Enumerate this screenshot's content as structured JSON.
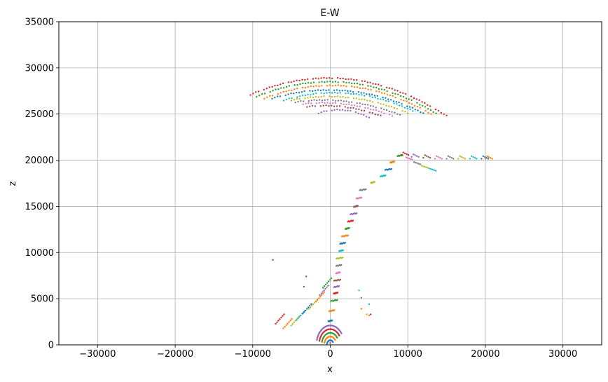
{
  "chart_data": {
    "type": "scatter",
    "title": "E-W",
    "xlabel": "x",
    "ylabel": "z",
    "xlim": [
      -35000,
      35000
    ],
    "ylim": [
      0,
      35000
    ],
    "grid": true,
    "xticks": [
      -30000,
      -20000,
      -10000,
      0,
      10000,
      20000,
      30000
    ],
    "yticks": [
      0,
      5000,
      10000,
      15000,
      20000,
      25000,
      30000,
      35000
    ],
    "xtick_labels": [
      "−30000",
      "−20000",
      "−10000",
      "0",
      "10000",
      "20000",
      "30000"
    ],
    "ytick_labels": [
      "0",
      "5000",
      "10000",
      "15000",
      "20000",
      "25000",
      "30000",
      "35000"
    ],
    "palette": [
      "#1f77b4",
      "#ff7f0e",
      "#2ca02c",
      "#d62728",
      "#9467bd",
      "#8c564b",
      "#e377c2",
      "#7f7f7f",
      "#bcbd22",
      "#17becf"
    ],
    "upper_arcs": [
      {
        "x": [
          -10300,
          0,
          15000
        ],
        "z": [
          27100,
          28900,
          24800
        ],
        "color": "#d62728"
      },
      {
        "x": [
          -9500,
          0,
          14000
        ],
        "z": [
          26900,
          28500,
          24900
        ],
        "color": "#2ca02c"
      },
      {
        "x": [
          -8500,
          0,
          13000
        ],
        "z": [
          26700,
          28100,
          25000
        ],
        "color": "#ff7f0e"
      },
      {
        "x": [
          -7500,
          0,
          12000
        ],
        "z": [
          26700,
          27600,
          25100
        ],
        "color": "#1f77b4"
      },
      {
        "x": [
          -6000,
          0,
          11000
        ],
        "z": [
          26500,
          27300,
          25200
        ],
        "color": "#17becf"
      },
      {
        "x": [
          -5000,
          0,
          10000
        ],
        "z": [
          26500,
          26900,
          25100
        ],
        "color": "#bcbd22"
      },
      {
        "x": [
          -4500,
          0,
          9000
        ],
        "z": [
          26300,
          26500,
          24900
        ],
        "color": "#7f7f7f"
      },
      {
        "x": [
          -3500,
          0,
          8000
        ],
        "z": [
          26100,
          26200,
          24800
        ],
        "color": "#e377c2"
      },
      {
        "x": [
          -3000,
          0,
          6500
        ],
        "z": [
          25800,
          25900,
          24800
        ],
        "color": "#8c564b"
      },
      {
        "x": [
          -1500,
          0,
          5000
        ],
        "z": [
          25100,
          25400,
          24600
        ],
        "color": "#9467bd"
      }
    ],
    "inclined_column": [
      {
        "x": 0,
        "z": 2600
      },
      {
        "x": 200,
        "z": 3700
      },
      {
        "x": 500,
        "z": 4800
      },
      {
        "x": 700,
        "z": 5600
      },
      {
        "x": 800,
        "z": 6300
      },
      {
        "x": 900,
        "z": 7000
      },
      {
        "x": 1000,
        "z": 7800
      },
      {
        "x": 1100,
        "z": 8600
      },
      {
        "x": 1200,
        "z": 9400
      },
      {
        "x": 1400,
        "z": 10200
      },
      {
        "x": 1600,
        "z": 11000
      },
      {
        "x": 1900,
        "z": 11800
      },
      {
        "x": 2200,
        "z": 12600
      },
      {
        "x": 2600,
        "z": 13400
      },
      {
        "x": 3000,
        "z": 14200
      },
      {
        "x": 3300,
        "z": 15000
      },
      {
        "x": 3700,
        "z": 15900
      },
      {
        "x": 4200,
        "z": 16800
      },
      {
        "x": 5500,
        "z": 17600
      },
      {
        "x": 6800,
        "z": 18300
      },
      {
        "x": 7500,
        "z": 19000
      },
      {
        "x": 8000,
        "z": 19800
      },
      {
        "x": 9000,
        "z": 20500
      }
    ],
    "branch_right": [
      {
        "x": 9200,
        "z": 20700
      },
      {
        "x": 10500,
        "z": 20500
      },
      {
        "x": 12000,
        "z": 20400
      },
      {
        "x": 13500,
        "z": 20300
      },
      {
        "x": 15000,
        "z": 20300
      },
      {
        "x": 16500,
        "z": 20300
      },
      {
        "x": 18000,
        "z": 20300
      },
      {
        "x": 19500,
        "z": 20300
      },
      {
        "x": 20000,
        "z": 20300
      }
    ],
    "branch_mid": [
      {
        "x": 9800,
        "z": 20300
      },
      {
        "x": 10800,
        "z": 19800
      },
      {
        "x": 11800,
        "z": 19400
      },
      {
        "x": 12800,
        "z": 19100
      }
    ],
    "lower_arcs": [
      {
        "r": 500,
        "color": "#1f77b4"
      },
      {
        "r": 900,
        "color": "#ff7f0e"
      },
      {
        "r": 1300,
        "color": "#2ca02c"
      },
      {
        "r": 1700,
        "color": "#d62728"
      },
      {
        "r": 2100,
        "color": "#9467bd"
      }
    ],
    "left_cluster": [
      {
        "x": -6500,
        "z": 2800,
        "color": "#d62728"
      },
      {
        "x": -5500,
        "z": 2300,
        "color": "#ff7f0e"
      },
      {
        "x": -4500,
        "z": 2600,
        "color": "#bcbd22"
      },
      {
        "x": -3800,
        "z": 3200,
        "color": "#17becf"
      },
      {
        "x": -3000,
        "z": 3900,
        "color": "#1f77b4"
      },
      {
        "x": -2200,
        "z": 4400,
        "color": "#bcbd22"
      },
      {
        "x": -1300,
        "z": 5200,
        "color": "#ff7f0e"
      },
      {
        "x": -800,
        "z": 5900,
        "color": "#9467bd"
      },
      {
        "x": -400,
        "z": 6700,
        "color": "#2ca02c"
      }
    ],
    "outliers": [
      {
        "x": -7400,
        "z": 9200,
        "color": "#d62728"
      },
      {
        "x": -3100,
        "z": 7400,
        "color": "#8c564b"
      },
      {
        "x": -3400,
        "z": 6300,
        "color": "#2ca02c"
      },
      {
        "x": 3700,
        "z": 5900,
        "color": "#17becf"
      },
      {
        "x": 4000,
        "z": 5100,
        "color": "#9467bd"
      },
      {
        "x": 5000,
        "z": 4400,
        "color": "#17becf"
      },
      {
        "x": 4000,
        "z": 3900,
        "color": "#ff7f0e"
      },
      {
        "x": 4700,
        "z": 3300,
        "color": "#bcbd22"
      },
      {
        "x": 5200,
        "z": 3300,
        "color": "#d62728"
      },
      {
        "x": 5000,
        "z": 3200,
        "color": "#ff7f0e"
      }
    ]
  }
}
